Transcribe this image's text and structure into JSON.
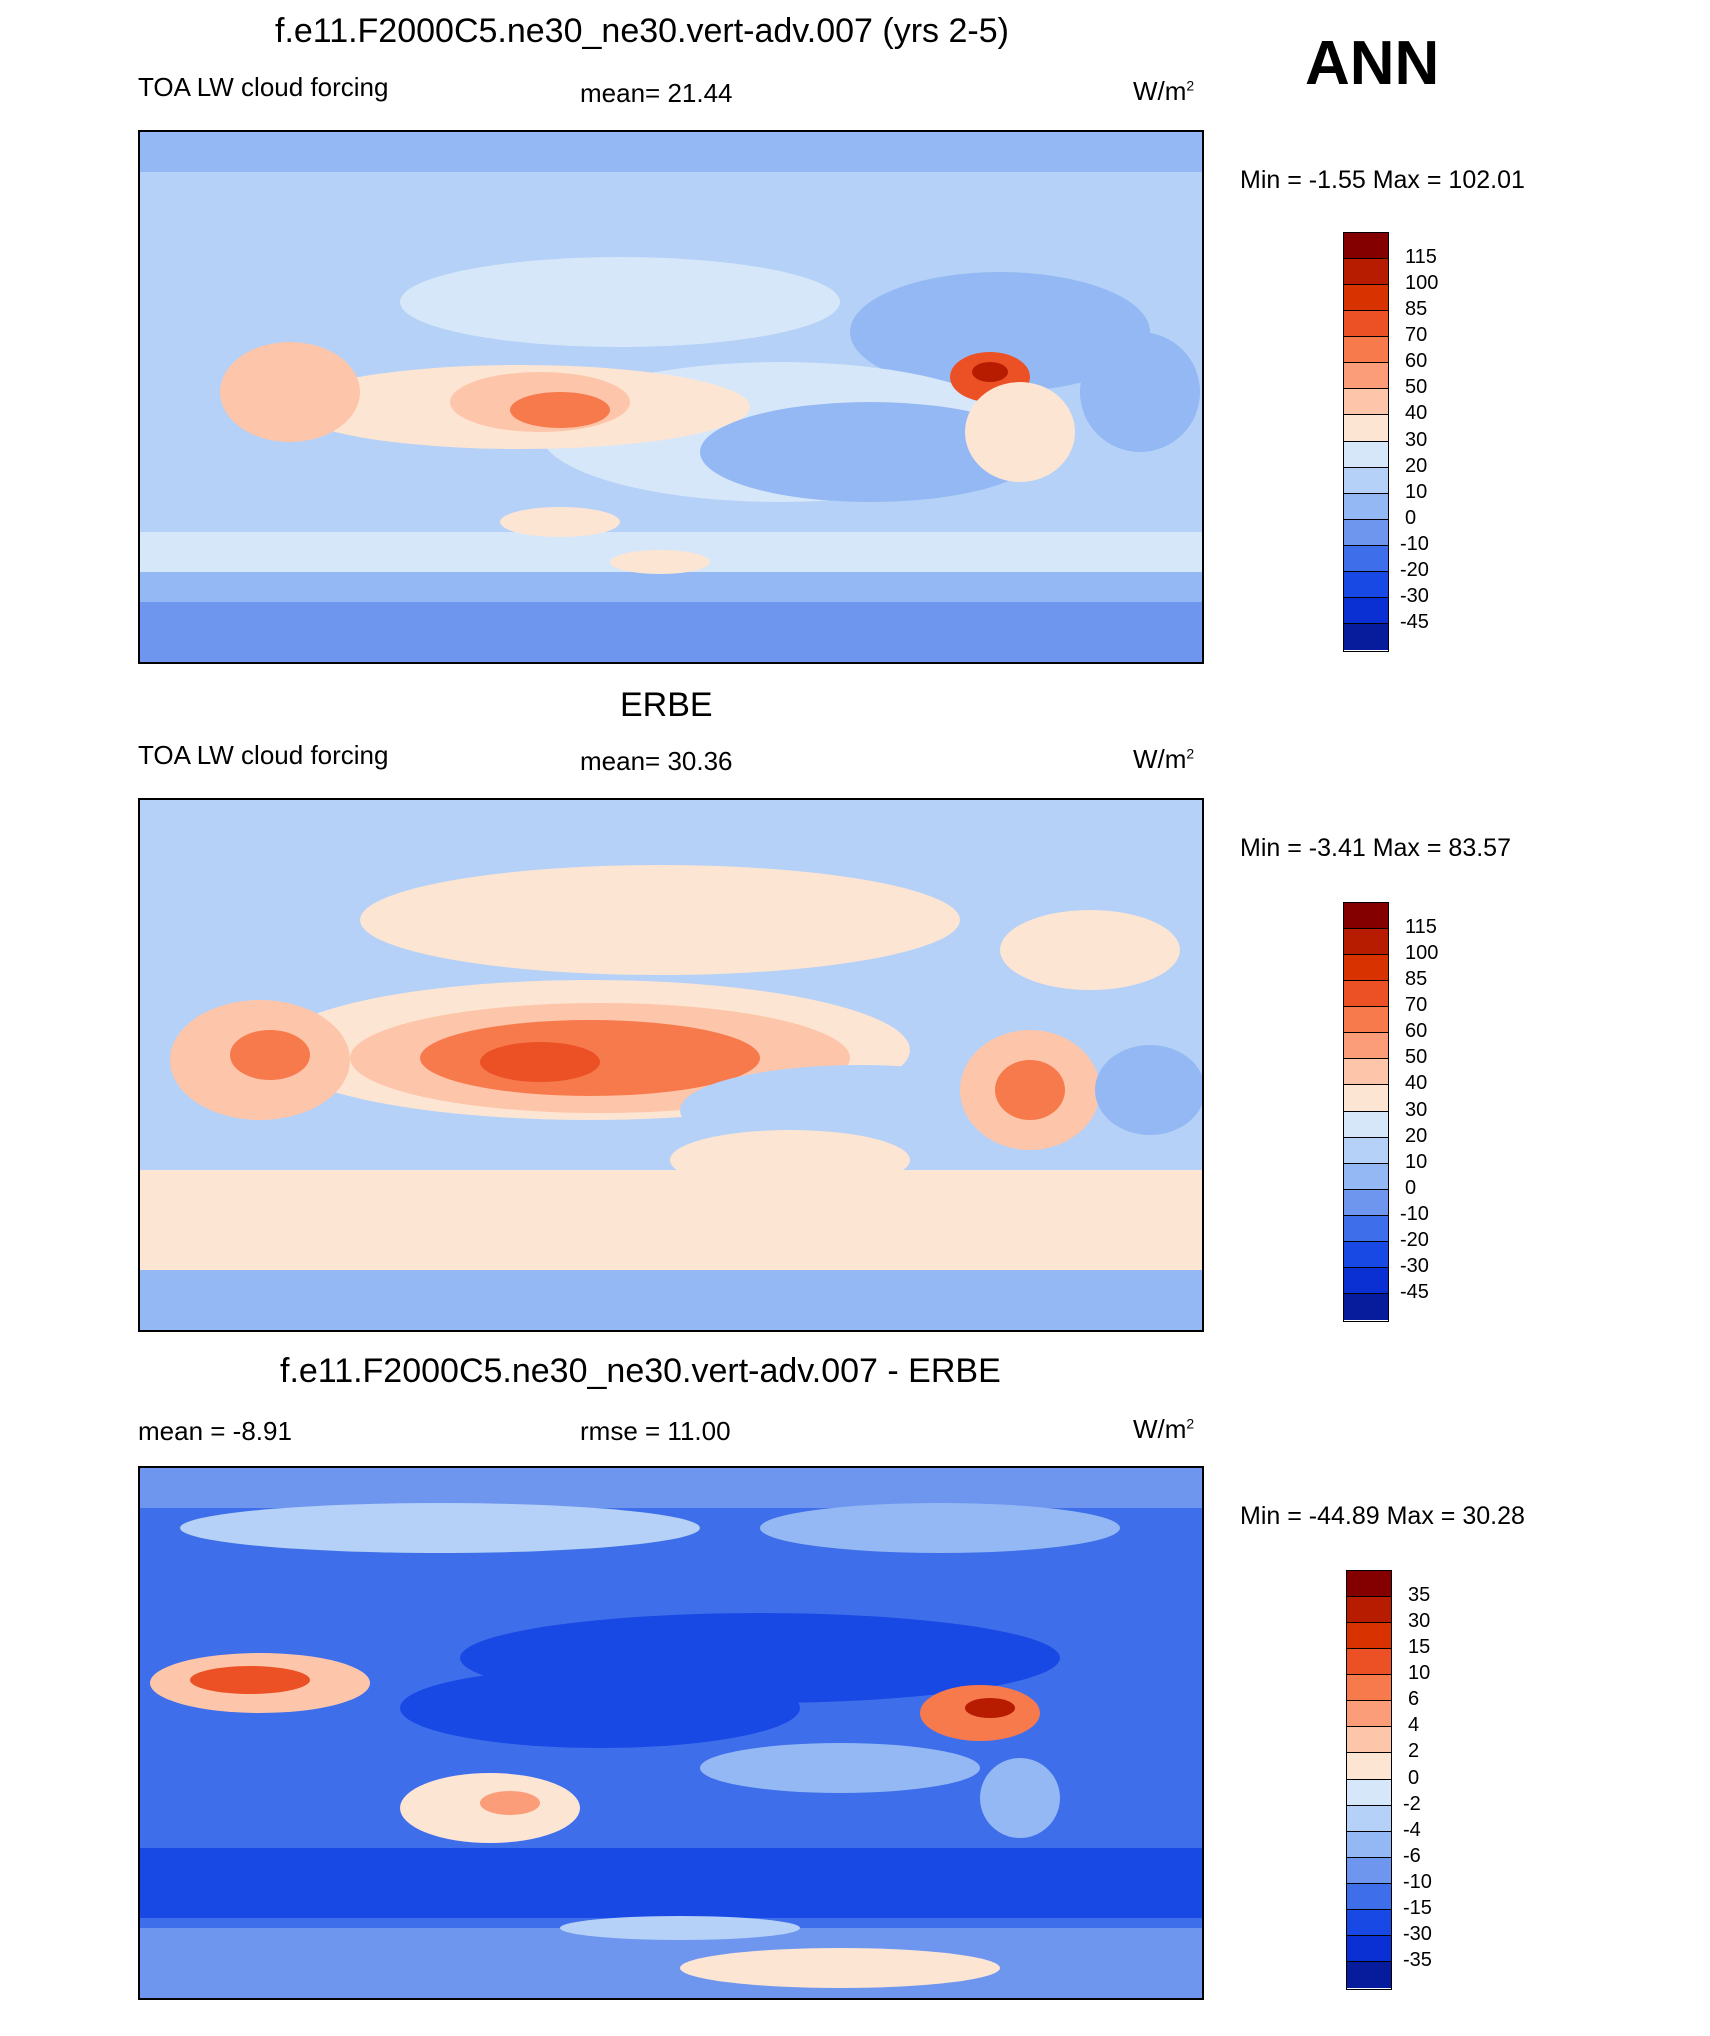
{
  "season": "ANN",
  "panels": [
    {
      "title": "f.e11.F2000C5.ne30_ne30.vert-adv.007 (yrs 2-5)",
      "left_label": "TOA LW cloud forcing",
      "center_label": "mean=  21.44",
      "units": "W/m",
      "units_sup": "2",
      "minmax": "Min =  -1.55 Max = 102.01",
      "levels": [
        "115",
        "100",
        "85",
        "70",
        "60",
        "50",
        "40",
        "30",
        "20",
        "10",
        "0",
        "-10",
        "-20",
        "-30",
        "-45"
      ]
    },
    {
      "title": "ERBE",
      "left_label": "TOA LW cloud forcing",
      "center_label": "mean=  30.36",
      "units": "W/m",
      "units_sup": "2",
      "minmax": "Min =  -3.41 Max =  83.57",
      "levels": [
        "115",
        "100",
        "85",
        "70",
        "60",
        "50",
        "40",
        "30",
        "20",
        "10",
        "0",
        "-10",
        "-20",
        "-30",
        "-45"
      ]
    },
    {
      "title": "f.e11.F2000C5.ne30_ne30.vert-adv.007 - ERBE",
      "left_label": "mean =  -8.91",
      "center_label": "rmse =  11.00",
      "units": "W/m",
      "units_sup": "2",
      "minmax": "Min = -44.89 Max =  30.28",
      "levels": [
        "35",
        "30",
        "15",
        "10",
        "6",
        "4",
        "2",
        "0",
        "-2",
        "-4",
        "-6",
        "-10",
        "-15",
        "-30",
        "-35"
      ]
    }
  ],
  "colors": {
    "colorbar": [
      "#840000",
      "#b71c00",
      "#d83200",
      "#ec5126",
      "#f77a4d",
      "#fb9d78",
      "#fdc5a9",
      "#fde5d3",
      "#d6e7fa",
      "#b5d1f7",
      "#94b8f3",
      "#6e96ef",
      "#3e6ee9",
      "#1849e4",
      "#0a2fd2",
      "#071c9c"
    ]
  }
}
